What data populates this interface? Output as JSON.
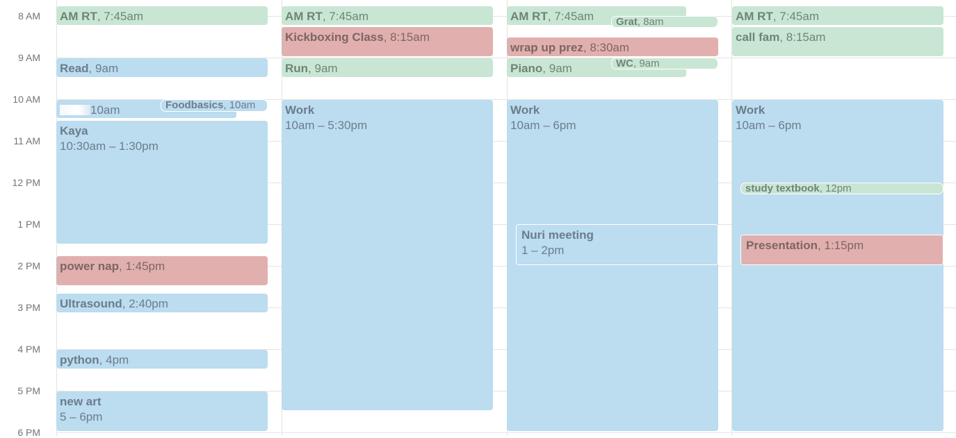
{
  "hours": [
    "8 AM",
    "9 AM",
    "10 AM",
    "11 AM",
    "12 PM",
    "1 PM",
    "2 PM",
    "3 PM",
    "4 PM",
    "5 PM",
    "6 PM"
  ],
  "day1": {
    "amrt": {
      "title": "AM RT",
      "time": "7:45am"
    },
    "read": {
      "title": "Read",
      "time": "9am"
    },
    "hidden": {
      "time": "10am"
    },
    "foodbasics": {
      "title": "Foodbasics",
      "time": "10am"
    },
    "kaya": {
      "title": "Kaya",
      "time": "10:30am – 1:30pm"
    },
    "powernap": {
      "title": "power nap",
      "time": "1:45pm"
    },
    "ultrasound": {
      "title": "Ultrasound",
      "time": "2:40pm"
    },
    "python": {
      "title": "python",
      "time": "4pm"
    },
    "newart": {
      "title": "new art",
      "time": "5 – 6pm"
    }
  },
  "day2": {
    "amrt": {
      "title": "AM RT",
      "time": "7:45am"
    },
    "kickboxing": {
      "title": "Kickboxing Class",
      "time": "8:15am"
    },
    "run": {
      "title": "Run",
      "time": "9am"
    },
    "work": {
      "title": "Work",
      "time": "10am – 5:30pm"
    }
  },
  "day3": {
    "amrt": {
      "title": "AM RT",
      "time": "7:45am"
    },
    "grat": {
      "title": "Grat",
      "time": "8am"
    },
    "wrapup": {
      "title": "wrap up prez",
      "time": "8:30am"
    },
    "piano": {
      "title": "Piano",
      "time": "9am"
    },
    "wc": {
      "title": "WC",
      "time": "9am"
    },
    "work": {
      "title": "Work",
      "time": "10am – 6pm"
    },
    "nuri": {
      "title": "Nuri meeting",
      "time": "1 – 2pm"
    }
  },
  "day4": {
    "amrt": {
      "title": "AM RT",
      "time": "7:45am"
    },
    "callfam": {
      "title": "call fam",
      "time": "8:15am"
    },
    "work": {
      "title": "Work",
      "time": "10am – 6pm"
    },
    "study": {
      "title": "study textbook",
      "time": "12pm"
    },
    "presentation": {
      "title": "Presentation",
      "time": "1:15pm"
    }
  }
}
